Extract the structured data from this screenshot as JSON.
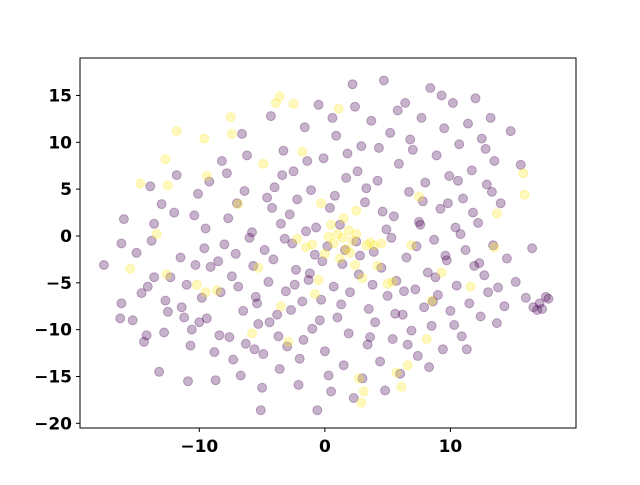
{
  "chart_data": {
    "type": "scatter",
    "title": "",
    "xlabel": "",
    "ylabel": "",
    "xlim": [
      -19.5,
      20
    ],
    "ylim": [
      -20.5,
      19
    ],
    "xticks": [
      -10,
      0,
      10
    ],
    "yticks": [
      15,
      10,
      5,
      0,
      -5,
      -10,
      -15,
      -20
    ],
    "xtick_labels": [
      "−10",
      "0",
      "10"
    ],
    "ytick_labels": [
      "15",
      "10",
      "5",
      "0",
      "−5",
      "−10",
      "−15",
      "−20"
    ],
    "grid": false,
    "legend": "none",
    "point_alpha": 0.3,
    "series": [
      {
        "color": "#440154",
        "points": [
          [
            -17.6,
            -3.1
          ],
          [
            -16.2,
            -7.2
          ],
          [
            -16.3,
            -8.8
          ],
          [
            -16.2,
            -0.8
          ],
          [
            -16.0,
            1.8
          ],
          [
            -15.0,
            -1.8
          ],
          [
            -14.6,
            -6.1
          ],
          [
            -14.2,
            -10.6
          ],
          [
            -14.4,
            -11.3
          ],
          [
            -14.1,
            -5.4
          ],
          [
            -13.6,
            -4.4
          ],
          [
            -13.6,
            1.3
          ],
          [
            -13.0,
            3.4
          ],
          [
            -13.2,
            -14.5
          ],
          [
            -12.7,
            -6.9
          ],
          [
            -12.3,
            -4.4
          ],
          [
            -12.0,
            2.5
          ],
          [
            -11.5,
            -2.3
          ],
          [
            -11.2,
            -8.7
          ],
          [
            -11.0,
            -5.2
          ],
          [
            -10.9,
            -15.5
          ],
          [
            -10.7,
            -11.7
          ],
          [
            -10.3,
            -3.1
          ],
          [
            -10.1,
            4.5
          ],
          [
            -10.0,
            -9.2
          ],
          [
            -9.6,
            -1.3
          ],
          [
            -9.5,
            0.8
          ],
          [
            -9.1,
            -3.3
          ],
          [
            -8.8,
            -12.4
          ],
          [
            -8.7,
            -15.4
          ],
          [
            -8.4,
            -10.6
          ],
          [
            -8.3,
            -6.0
          ],
          [
            -8.0,
            -0.9
          ],
          [
            -7.8,
            6.7
          ],
          [
            -7.6,
            -10.8
          ],
          [
            -7.4,
            -4.3
          ],
          [
            -7.1,
            -1.9
          ],
          [
            -7.0,
            3.5
          ],
          [
            -6.7,
            -14.9
          ],
          [
            -6.6,
            10.9
          ],
          [
            -6.5,
            -8.0
          ],
          [
            -6.3,
            -11.5
          ],
          [
            -6.0,
            -0.2
          ],
          [
            -5.8,
            0.4
          ],
          [
            -5.7,
            -3.2
          ],
          [
            -5.5,
            -6.5
          ],
          [
            -5.3,
            -9.4
          ],
          [
            -5.1,
            -18.6
          ],
          [
            -5.0,
            -16.2
          ],
          [
            -4.9,
            -12.6
          ],
          [
            -4.6,
            4.1
          ],
          [
            -4.5,
            -4.9
          ],
          [
            -4.3,
            12.8
          ],
          [
            -4.1,
            -2.5
          ],
          [
            -4.0,
            5.2
          ],
          [
            -3.8,
            -8.4
          ],
          [
            -3.6,
            -14.2
          ],
          [
            -3.5,
            1.3
          ],
          [
            -3.3,
            9.1
          ],
          [
            -3.1,
            -5.9
          ],
          [
            -3.0,
            -11.8
          ],
          [
            -2.8,
            2.3
          ],
          [
            -2.6,
            -0.8
          ],
          [
            -2.5,
            6.9
          ],
          [
            -2.3,
            -3.6
          ],
          [
            -2.1,
            -15.9
          ],
          [
            -2.0,
            -13.1
          ],
          [
            -1.8,
            -7.0
          ],
          [
            -1.6,
            11.6
          ],
          [
            -1.5,
            0.5
          ],
          [
            -1.3,
            -4.7
          ],
          [
            -1.1,
            4.9
          ],
          [
            -1.0,
            -9.9
          ],
          [
            -0.8,
            -2.0
          ],
          [
            -0.6,
            -18.6
          ],
          [
            -0.5,
            14.0
          ],
          [
            -0.3,
            -6.8
          ],
          [
            -0.1,
            8.3
          ],
          [
            0.0,
            -12.3
          ],
          [
            0.2,
            -1.1
          ],
          [
            0.4,
            3.0
          ],
          [
            0.5,
            -16.6
          ],
          [
            0.7,
            -5.4
          ],
          [
            0.9,
            10.7
          ],
          [
            1.0,
            -8.7
          ],
          [
            1.2,
            1.2
          ],
          [
            1.4,
            -3.0
          ],
          [
            1.5,
            -13.8
          ],
          [
            1.7,
            6.2
          ],
          [
            1.9,
            -10.4
          ],
          [
            2.0,
            -6.0
          ],
          [
            2.2,
            16.2
          ],
          [
            2.4,
            13.8
          ],
          [
            2.5,
            -0.6
          ],
          [
            2.7,
            -4.1
          ],
          [
            2.9,
            9.6
          ],
          [
            3.0,
            -15.2
          ],
          [
            3.2,
            3.6
          ],
          [
            3.4,
            -11.6
          ],
          [
            3.5,
            -7.8
          ],
          [
            3.7,
            12.3
          ],
          [
            3.9,
            -1.7
          ],
          [
            4.0,
            -9.2
          ],
          [
            4.2,
            5.9
          ],
          [
            4.4,
            -13.4
          ],
          [
            4.5,
            -3.4
          ],
          [
            4.7,
            16.6
          ],
          [
            4.9,
            0.7
          ],
          [
            5.0,
            -6.4
          ],
          [
            5.2,
            11.0
          ],
          [
            5.4,
            -11.0
          ],
          [
            5.5,
            2.1
          ],
          [
            5.7,
            -4.8
          ],
          [
            5.9,
            7.7
          ],
          [
            6.0,
            -14.7
          ],
          [
            6.2,
            -8.4
          ],
          [
            6.4,
            14.2
          ],
          [
            6.5,
            -2.3
          ],
          [
            6.7,
            4.7
          ],
          [
            6.9,
            -10.1
          ],
          [
            7.0,
            9.2
          ],
          [
            7.2,
            -5.7
          ],
          [
            7.4,
            -12.8
          ],
          [
            7.5,
            1.5
          ],
          [
            7.7,
            12.6
          ],
          [
            7.9,
            -7.6
          ],
          [
            8.0,
            5.7
          ],
          [
            8.2,
            -3.9
          ],
          [
            8.4,
            15.8
          ],
          [
            8.5,
            -9.6
          ],
          [
            8.7,
            -0.4
          ],
          [
            8.9,
            8.6
          ],
          [
            9.0,
            -6.3
          ],
          [
            9.2,
            2.9
          ],
          [
            9.4,
            -12.1
          ],
          [
            9.5,
            11.5
          ],
          [
            9.7,
            -2.6
          ],
          [
            9.9,
            6.4
          ],
          [
            10.0,
            -8.0
          ],
          [
            10.2,
            14.2
          ],
          [
            10.4,
            0.9
          ],
          [
            10.5,
            -5.3
          ],
          [
            10.7,
            9.8
          ],
          [
            10.9,
            -10.7
          ],
          [
            11.0,
            4.0
          ],
          [
            11.2,
            -1.5
          ],
          [
            11.4,
            12.0
          ],
          [
            11.5,
            -7.2
          ],
          [
            11.7,
            7.0
          ],
          [
            11.9,
            -3.2
          ],
          [
            12.0,
            14.7
          ],
          [
            12.2,
            1.4
          ],
          [
            12.4,
            -8.6
          ],
          [
            12.5,
            10.4
          ],
          [
            12.7,
            -4.2
          ],
          [
            12.9,
            5.5
          ],
          [
            13.0,
            -6.0
          ],
          [
            13.2,
            12.6
          ],
          [
            13.4,
            -1.0
          ],
          [
            13.5,
            8.0
          ],
          [
            13.7,
            -9.3
          ],
          [
            14.0,
            3.5
          ],
          [
            14.5,
            -2.4
          ],
          [
            14.8,
            11.2
          ],
          [
            15.2,
            -4.9
          ],
          [
            15.6,
            7.6
          ],
          [
            16.0,
            -6.6
          ],
          [
            16.5,
            -1.3
          ],
          [
            16.6,
            -7.6
          ],
          [
            16.9,
            -7.9
          ],
          [
            17.1,
            -7.2
          ],
          [
            17.3,
            -7.8
          ],
          [
            17.6,
            -6.5
          ],
          [
            17.8,
            -6.7
          ],
          [
            -15.3,
            -9.0
          ],
          [
            -13.8,
            -0.5
          ],
          [
            -12.5,
            -8.1
          ],
          [
            -11.8,
            6.5
          ],
          [
            -10.6,
            -10.0
          ],
          [
            -9.8,
            -6.6
          ],
          [
            -9.2,
            5.8
          ],
          [
            -8.5,
            -2.7
          ],
          [
            -7.7,
            1.9
          ],
          [
            -6.9,
            -5.4
          ],
          [
            -6.2,
            8.6
          ],
          [
            -5.6,
            -12.1
          ],
          [
            -4.8,
            -1.5
          ],
          [
            -4.2,
            3.0
          ],
          [
            -3.7,
            -10.7
          ],
          [
            -3.2,
            -0.3
          ],
          [
            -2.7,
            -7.9
          ],
          [
            -2.2,
            3.9
          ],
          [
            -1.7,
            -11.1
          ],
          [
            -1.2,
            -4.0
          ],
          [
            -0.7,
            0.9
          ],
          [
            -0.2,
            -2.7
          ],
          [
            0.3,
            -14.9
          ],
          [
            0.8,
            4.3
          ],
          [
            1.3,
            -7.3
          ],
          [
            1.8,
            8.8
          ],
          [
            2.3,
            -17.3
          ],
          [
            2.8,
            -2.1
          ],
          [
            3.3,
            5.1
          ],
          [
            3.8,
            -5.2
          ],
          [
            4.3,
            9.4
          ],
          [
            4.8,
            -16.5
          ],
          [
            5.3,
            -0.2
          ],
          [
            5.8,
            13.4
          ],
          [
            6.3,
            -5.9
          ],
          [
            6.8,
            10.3
          ],
          [
            7.3,
            -1.1
          ],
          [
            7.8,
            3.7
          ],
          [
            8.3,
            -14.0
          ],
          [
            8.8,
            -4.4
          ],
          [
            9.3,
            15.0
          ],
          [
            9.8,
            3.5
          ],
          [
            10.3,
            -9.5
          ],
          [
            10.8,
            0.2
          ],
          [
            11.3,
            -12.1
          ],
          [
            11.8,
            2.5
          ],
          [
            12.3,
            -2.9
          ],
          [
            12.8,
            9.3
          ],
          [
            13.3,
            4.7
          ],
          [
            13.8,
            -5.5
          ],
          [
            14.3,
            -7.5
          ],
          [
            -13.9,
            5.3
          ],
          [
            -12.8,
            -10.3
          ],
          [
            -11.4,
            -7.6
          ],
          [
            -10.4,
            2.2
          ],
          [
            -9.4,
            -8.8
          ],
          [
            -8.2,
            8.0
          ],
          [
            -7.3,
            -13.2
          ],
          [
            -6.4,
            4.8
          ],
          [
            -5.4,
            -7.2
          ],
          [
            -4.4,
            -9.2
          ],
          [
            -3.4,
            6.5
          ],
          [
            -2.4,
            -5.2
          ],
          [
            -1.4,
            8.0
          ],
          [
            -0.4,
            -9.0
          ],
          [
            0.6,
            12.6
          ],
          [
            1.6,
            -1.5
          ],
          [
            2.6,
            6.9
          ],
          [
            3.6,
            -10.8
          ],
          [
            4.6,
            2.6
          ],
          [
            5.6,
            -8.3
          ],
          [
            6.6,
            -11.6
          ],
          [
            7.6,
            1.2
          ],
          [
            8.6,
            -7.0
          ],
          [
            9.6,
            -2.1
          ],
          [
            10.6,
            5.9
          ]
        ]
      },
      {
        "color": "#fde725",
        "points": [
          [
            -15.5,
            -3.5
          ],
          [
            -14.7,
            5.6
          ],
          [
            -13.4,
            0.2
          ],
          [
            -12.7,
            8.2
          ],
          [
            -12.5,
            5.4
          ],
          [
            -11.8,
            11.2
          ],
          [
            -10.2,
            -5.2
          ],
          [
            -9.6,
            10.4
          ],
          [
            -9.5,
            -6.0
          ],
          [
            -8.6,
            -5.8
          ],
          [
            -7.5,
            12.7
          ],
          [
            -7.4,
            10.9
          ],
          [
            -6.9,
            3.4
          ],
          [
            -5.8,
            -10.4
          ],
          [
            -4.9,
            7.7
          ],
          [
            -3.9,
            14.2
          ],
          [
            -3.6,
            14.9
          ],
          [
            -3.5,
            -7.5
          ],
          [
            -2.5,
            14.1
          ],
          [
            -2.2,
            -0.3
          ],
          [
            -1.8,
            9.0
          ],
          [
            -1.5,
            -1.2
          ],
          [
            -1.0,
            -0.9
          ],
          [
            -0.8,
            -6.2
          ],
          [
            -0.5,
            -4.7
          ],
          [
            -0.3,
            3.5
          ],
          [
            0.0,
            -1.9
          ],
          [
            0.3,
            -0.1
          ],
          [
            0.5,
            1.2
          ],
          [
            0.7,
            -0.8
          ],
          [
            1.0,
            0.2
          ],
          [
            1.2,
            -2.4
          ],
          [
            1.4,
            -0.2
          ],
          [
            1.5,
            1.9
          ],
          [
            1.7,
            -1.4
          ],
          [
            1.9,
            0.6
          ],
          [
            2.0,
            -1.8
          ],
          [
            2.2,
            -0.5
          ],
          [
            2.4,
            -3.1
          ],
          [
            2.5,
            0.2
          ],
          [
            2.7,
            -15.2
          ],
          [
            2.9,
            -17.8
          ],
          [
            3.1,
            -16.6
          ],
          [
            2.5,
            2.7
          ],
          [
            3.3,
            -1.0
          ],
          [
            3.6,
            -0.7
          ],
          [
            3.9,
            -1.0
          ],
          [
            4.2,
            -3.2
          ],
          [
            4.5,
            -0.8
          ],
          [
            5.0,
            -5.1
          ],
          [
            5.4,
            -4.9
          ],
          [
            6.1,
            -16.1
          ],
          [
            6.6,
            -13.8
          ],
          [
            6.9,
            -1.0
          ],
          [
            7.5,
            4.2
          ],
          [
            8.5,
            -6.9
          ],
          [
            9.3,
            -3.9
          ],
          [
            11.6,
            -5.4
          ],
          [
            13.5,
            -1.2
          ],
          [
            13.7,
            2.4
          ],
          [
            15.8,
            6.7
          ],
          [
            15.9,
            4.4
          ],
          [
            -12.6,
            -4.1
          ],
          [
            -9.4,
            6.4
          ],
          [
            -5.3,
            -3.4
          ],
          [
            -2.9,
            -11.3
          ],
          [
            1.1,
            13.6
          ],
          [
            3.0,
            -4.5
          ],
          [
            5.7,
            -14.6
          ],
          [
            8.1,
            -11.0
          ]
        ]
      }
    ]
  }
}
